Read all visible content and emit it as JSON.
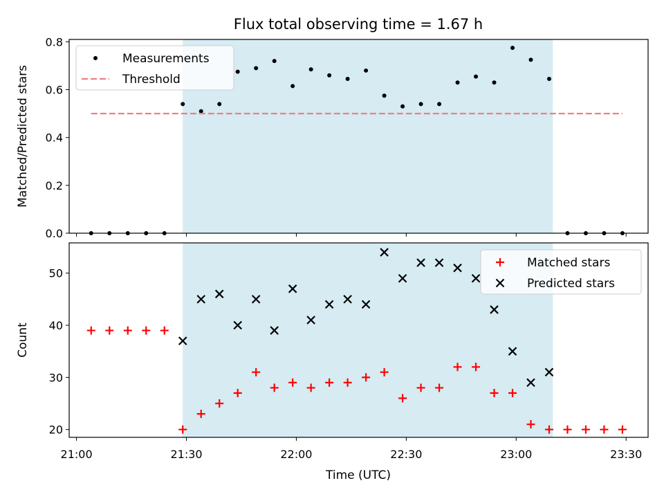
{
  "figure": {
    "title": "Flux total observing time = 1.67 h",
    "xlabel": "Time (UTC)"
  },
  "chart_data": [
    {
      "type": "scatter",
      "ylabel": "Matched/Predicted stars",
      "xlim": [
        "20:58",
        "23:36"
      ],
      "ylim": [
        0,
        0.81
      ],
      "xticks": [
        "21:00",
        "21:30",
        "22:00",
        "22:30",
        "23:00",
        "23:30"
      ],
      "yticks": [
        "0.0",
        "0.2",
        "0.4",
        "0.6",
        "0.8"
      ],
      "shaded_span": [
        "21:29",
        "23:10"
      ],
      "legend": {
        "placement": "upper left",
        "entries": [
          "Measurements",
          "Threshold"
        ]
      },
      "series": [
        {
          "name": "Measurements",
          "marker": "dot",
          "color": "#000000",
          "x": [
            "21:04",
            "21:09",
            "21:14",
            "21:19",
            "21:24",
            "21:29",
            "21:34",
            "21:39",
            "21:44",
            "21:49",
            "21:54",
            "21:59",
            "22:04",
            "22:09",
            "22:14",
            "22:19",
            "22:24",
            "22:29",
            "22:34",
            "22:39",
            "22:44",
            "22:49",
            "22:54",
            "22:59",
            "23:04",
            "23:09",
            "23:14",
            "23:19",
            "23:24",
            "23:29"
          ],
          "y": [
            0,
            0,
            0,
            0,
            0,
            0.54,
            0.51,
            0.54,
            0.675,
            0.69,
            0.72,
            0.615,
            0.685,
            0.66,
            0.645,
            0.68,
            0.575,
            0.53,
            0.54,
            0.54,
            0.63,
            0.655,
            0.63,
            0.775,
            0.725,
            0.645,
            0,
            0,
            0,
            0
          ]
        },
        {
          "name": "Threshold",
          "style": "dashed",
          "color": "#f07f7f",
          "x": [
            "21:04",
            "23:29"
          ],
          "y": [
            0.5,
            0.5
          ]
        }
      ]
    },
    {
      "type": "scatter",
      "ylabel": "Count",
      "xlim": [
        "20:58",
        "23:36"
      ],
      "ylim": [
        18.5,
        55.8
      ],
      "xticks": [
        "21:00",
        "21:30",
        "22:00",
        "22:30",
        "23:00",
        "23:30"
      ],
      "yticks": [
        "20",
        "30",
        "40",
        "50"
      ],
      "shaded_span": [
        "21:29",
        "23:10"
      ],
      "legend": {
        "placement": "upper right",
        "entries": [
          "Matched stars",
          "Predicted stars"
        ]
      },
      "series": [
        {
          "name": "Matched stars",
          "marker": "plus",
          "color": "#ff0000",
          "x": [
            "21:04",
            "21:09",
            "21:14",
            "21:19",
            "21:24",
            "21:29",
            "21:34",
            "21:39",
            "21:44",
            "21:49",
            "21:54",
            "21:59",
            "22:04",
            "22:09",
            "22:14",
            "22:19",
            "22:24",
            "22:29",
            "22:34",
            "22:39",
            "22:44",
            "22:49",
            "22:54",
            "22:59",
            "23:04",
            "23:09",
            "23:14",
            "23:19",
            "23:24",
            "23:29"
          ],
          "y": [
            39,
            39,
            39,
            39,
            39,
            20,
            23,
            25,
            27,
            31,
            28,
            29,
            28,
            29,
            29,
            30,
            31,
            26,
            28,
            28,
            32,
            32,
            27,
            27,
            21,
            20,
            20,
            20,
            20,
            20
          ]
        },
        {
          "name": "Predicted stars",
          "marker": "x",
          "color": "#000000",
          "x": [
            "21:29",
            "21:34",
            "21:39",
            "21:44",
            "21:49",
            "21:54",
            "21:59",
            "22:04",
            "22:09",
            "22:14",
            "22:19",
            "22:24",
            "22:29",
            "22:34",
            "22:39",
            "22:44",
            "22:49",
            "22:54",
            "22:59",
            "23:04",
            "23:09"
          ],
          "y": [
            37,
            45,
            46,
            40,
            45,
            39,
            47,
            41,
            44,
            45,
            44,
            54,
            49,
            52,
            52,
            51,
            49,
            43,
            35,
            29,
            31
          ]
        }
      ]
    }
  ],
  "colors": {
    "shade": "#add8e6",
    "threshold": "#f07f7f",
    "matched": "#ff0000",
    "predicted": "#000000",
    "measurements": "#000000"
  }
}
